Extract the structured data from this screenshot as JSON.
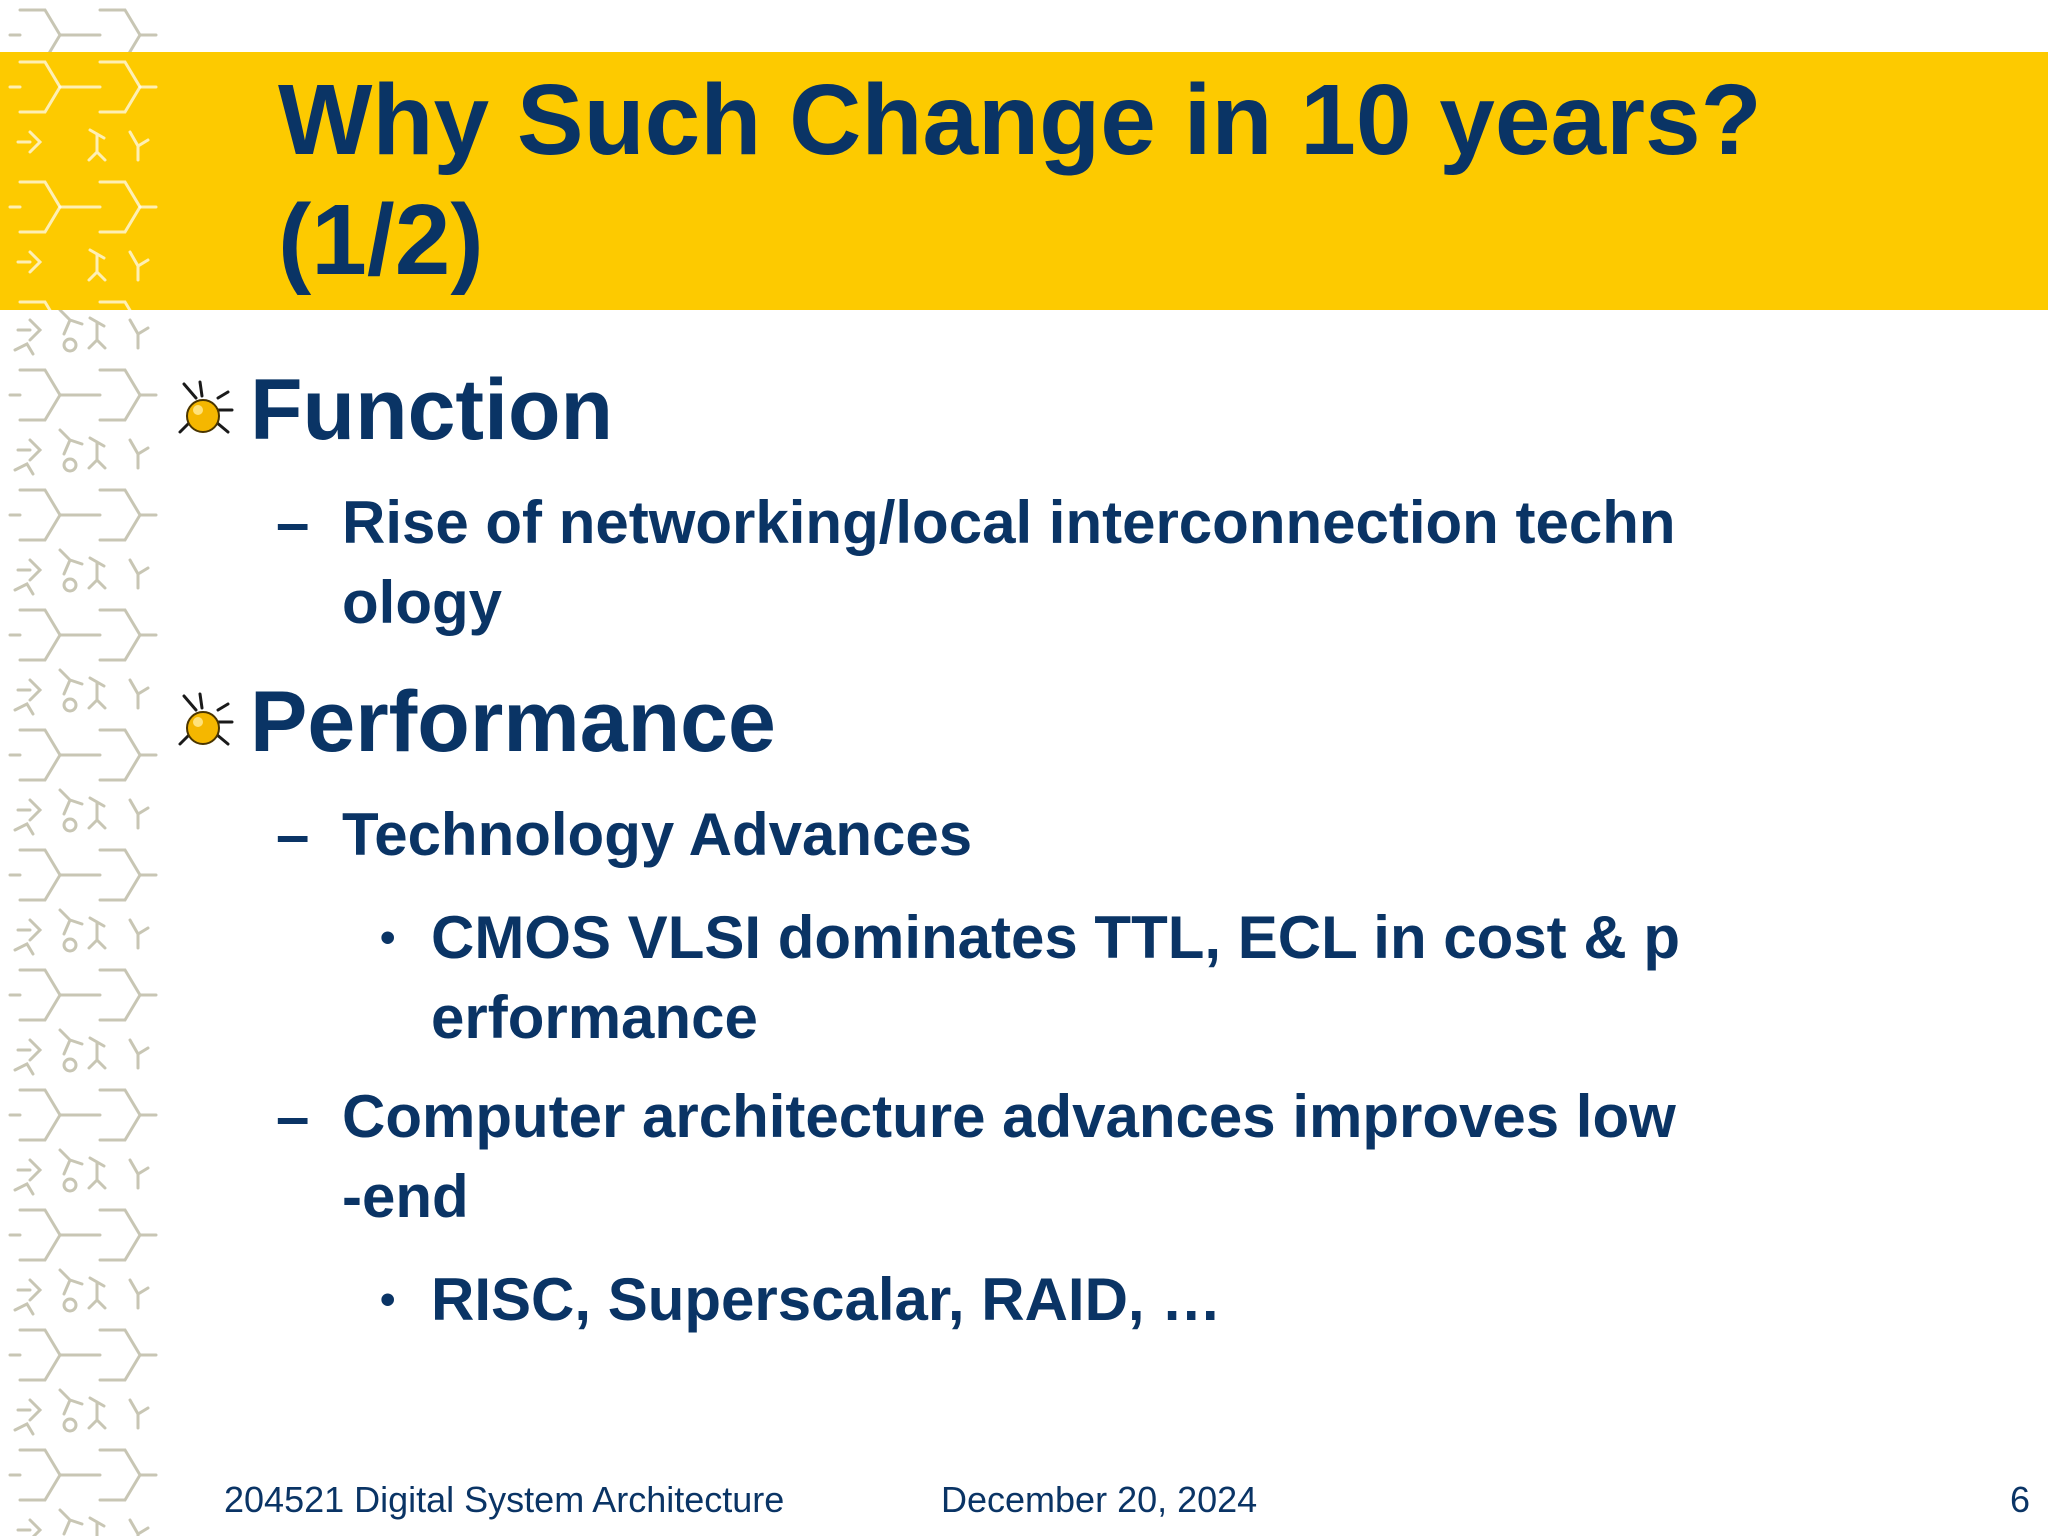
{
  "slide": {
    "title_line1": "Why Such Change in 10 years?",
    "title_line2": "(1/2)",
    "sections": [
      {
        "heading": "Function",
        "items": [
          {
            "line1": "Rise of networking/local interconnection techn",
            "line2": "ology"
          }
        ]
      },
      {
        "heading": "Performance",
        "items": [
          {
            "line1": "Technology Advances",
            "sub": [
              {
                "line1": "CMOS VLSI dominates TTL, ECL in cost & p",
                "line2": "erformance"
              }
            ]
          },
          {
            "line1": "Computer architecture advances improves low",
            "line2": "-end",
            "sub": [
              {
                "line1": "RISC, Superscalar, RAID, …"
              }
            ]
          }
        ]
      }
    ],
    "dash_glyph": "–",
    "dot_glyph": "•"
  },
  "footer": {
    "course": "204521 Digital System Architecture",
    "date": "December 20, 2024",
    "page_number": "6"
  },
  "colors": {
    "title_bar": "#fdca00",
    "text": "#0a3465",
    "pattern": "#c8c6b4"
  },
  "icons": {
    "bullet": "insect-bullet-icon"
  }
}
